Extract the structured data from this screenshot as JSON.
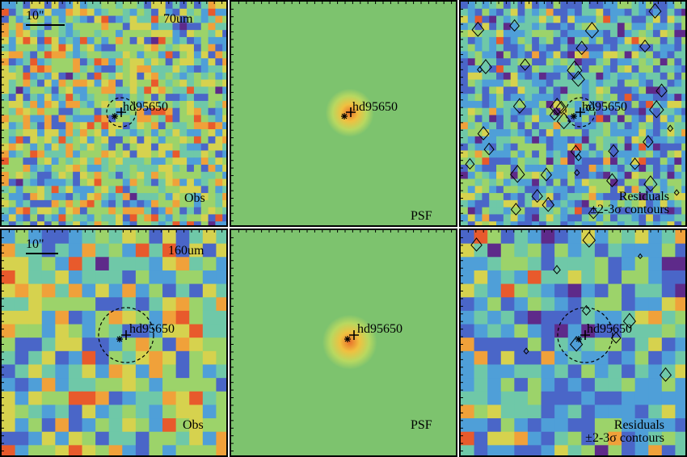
{
  "target_name": "hd95650",
  "scale_label": "10\"",
  "rows": [
    {
      "band": "70um",
      "obs_label": "Obs",
      "psf_label": "PSF",
      "resid_label_1": "Residuals",
      "resid_label_2": "±2-3σ contours"
    },
    {
      "band": "160um",
      "obs_label": "Obs",
      "psf_label": "PSF",
      "resid_label_1": "Residuals",
      "resid_label_2": "±2-3σ contours"
    }
  ],
  "colors": {
    "background_map": "#8ccf6e",
    "psf_background": "#7dc36e",
    "psf_peak": "#e8702a",
    "palette": [
      "#5e2a8a",
      "#4a66c8",
      "#4f9fd8",
      "#6fc8a8",
      "#9cd36a",
      "#d6d24e",
      "#f0a13a",
      "#e85a2c"
    ]
  }
}
